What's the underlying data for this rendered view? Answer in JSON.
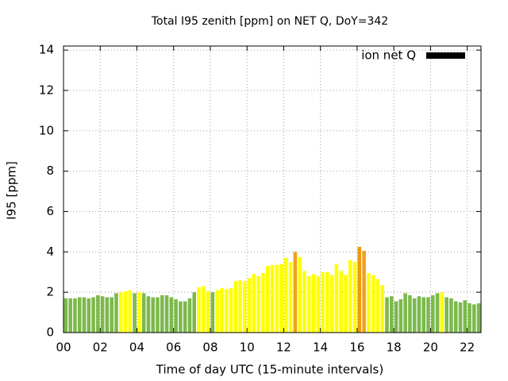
{
  "chart_data": {
    "type": "bar",
    "title": "Total I95 zenith [ppm] on NET Q, DoY=342",
    "x_label": "Time of day UTC (15-minute intervals)",
    "y_label": "I95 [ppm]",
    "xlim": [
      0,
      22.75
    ],
    "ylim": [
      0,
      14.2
    ],
    "xticks": [
      {
        "value": 0,
        "label": "00"
      },
      {
        "value": 2,
        "label": "02"
      },
      {
        "value": 4,
        "label": "04"
      },
      {
        "value": 6,
        "label": "06"
      },
      {
        "value": 8,
        "label": "08"
      },
      {
        "value": 10,
        "label": "10"
      },
      {
        "value": 12,
        "label": "12"
      },
      {
        "value": 14,
        "label": "14"
      },
      {
        "value": 16,
        "label": "16"
      },
      {
        "value": 18,
        "label": "18"
      },
      {
        "value": 20,
        "label": "20"
      },
      {
        "value": 22,
        "label": "22"
      }
    ],
    "yticks": [
      0,
      2,
      4,
      6,
      8,
      10,
      12,
      14
    ],
    "grid": true,
    "legend": "top-right",
    "x": [
      0,
      0.25,
      0.5,
      0.75,
      1,
      1.25,
      1.5,
      1.75,
      2,
      2.25,
      2.5,
      2.75,
      3,
      3.25,
      3.5,
      3.75,
      4,
      4.25,
      4.5,
      4.75,
      5,
      5.25,
      5.5,
      5.75,
      6,
      6.25,
      6.5,
      6.75,
      7,
      7.25,
      7.5,
      7.75,
      8,
      8.25,
      8.5,
      8.75,
      9,
      9.25,
      9.5,
      9.75,
      10,
      10.25,
      10.5,
      10.75,
      11,
      11.25,
      11.5,
      11.75,
      12,
      12.25,
      12.5,
      12.75,
      13,
      13.25,
      13.5,
      13.75,
      14,
      14.25,
      14.5,
      14.75,
      15,
      15.25,
      15.5,
      15.75,
      16,
      16.25,
      16.5,
      16.75,
      17,
      17.25,
      17.5,
      17.75,
      18,
      18.25,
      18.5,
      18.75,
      19,
      19.25,
      19.5,
      19.75,
      20,
      20.25,
      20.5,
      20.75,
      21,
      21.25,
      21.5,
      21.75,
      22,
      22.25,
      22.5
    ],
    "series": [
      {
        "name": "ion net Q",
        "color": "#000000",
        "values": [
          1.7,
          1.7,
          1.7,
          1.75,
          1.75,
          1.7,
          1.75,
          1.85,
          1.8,
          1.75,
          1.75,
          1.95,
          2.0,
          2.05,
          2.1,
          1.95,
          2.0,
          1.95,
          1.8,
          1.75,
          1.75,
          1.85,
          1.85,
          1.75,
          1.65,
          1.55,
          1.55,
          1.7,
          2.0,
          2.25,
          2.3,
          2.05,
          2.0,
          2.1,
          2.2,
          2.15,
          2.2,
          2.55,
          2.6,
          2.55,
          2.7,
          2.9,
          2.8,
          2.95,
          3.3,
          3.35,
          3.35,
          3.4,
          3.7,
          3.5,
          4.0,
          3.75,
          3.05,
          2.8,
          2.9,
          2.8,
          3.0,
          3.0,
          2.85,
          3.4,
          3.05,
          2.85,
          3.6,
          3.5,
          4.25,
          4.05,
          2.95,
          2.85,
          2.65,
          2.35,
          1.75,
          1.8,
          1.55,
          1.65,
          1.95,
          1.85,
          1.7,
          1.8,
          1.75,
          1.75,
          1.85,
          1.95,
          2.0,
          1.75,
          1.7,
          1.55,
          1.5,
          1.6,
          1.45,
          1.4,
          1.45
        ],
        "colors": [
          "#7cb94c",
          "#7cb94c",
          "#7cb94c",
          "#7cb94c",
          "#7cb94c",
          "#7cb94c",
          "#7cb94c",
          "#7cb94c",
          "#7cb94c",
          "#7cb94c",
          "#7cb94c",
          "#7cb94c",
          "#ffff00",
          "#ffff00",
          "#ffff00",
          "#7cb94c",
          "#ffff00",
          "#7cb94c",
          "#7cb94c",
          "#7cb94c",
          "#7cb94c",
          "#7cb94c",
          "#7cb94c",
          "#7cb94c",
          "#7cb94c",
          "#7cb94c",
          "#7cb94c",
          "#7cb94c",
          "#7cb94c",
          "#ffff00",
          "#ffff00",
          "#ffff00",
          "#7cb94c",
          "#ffff00",
          "#ffff00",
          "#ffff00",
          "#ffff00",
          "#ffff00",
          "#ffff00",
          "#ffff00",
          "#ffff00",
          "#ffff00",
          "#ffff00",
          "#ffff00",
          "#ffff00",
          "#ffff00",
          "#ffff00",
          "#ffff00",
          "#ffff00",
          "#ffff00",
          "#f0a020",
          "#ffff00",
          "#ffff00",
          "#ffff00",
          "#ffff00",
          "#ffff00",
          "#ffff00",
          "#ffff00",
          "#ffff00",
          "#ffff00",
          "#ffff00",
          "#ffff00",
          "#ffff00",
          "#ffff00",
          "#eb9a10",
          "#f0a020",
          "#ffff00",
          "#ffff00",
          "#ffff00",
          "#ffff00",
          "#7cb94c",
          "#7cb94c",
          "#7cb94c",
          "#7cb94c",
          "#7cb94c",
          "#7cb94c",
          "#7cb94c",
          "#7cb94c",
          "#7cb94c",
          "#7cb94c",
          "#7cb94c",
          "#7cb94c",
          "#ffff00",
          "#7cb94c",
          "#7cb94c",
          "#7cb94c",
          "#7cb94c",
          "#7cb94c",
          "#7cb94c",
          "#7cb94c",
          "#7cb94c"
        ]
      }
    ]
  }
}
